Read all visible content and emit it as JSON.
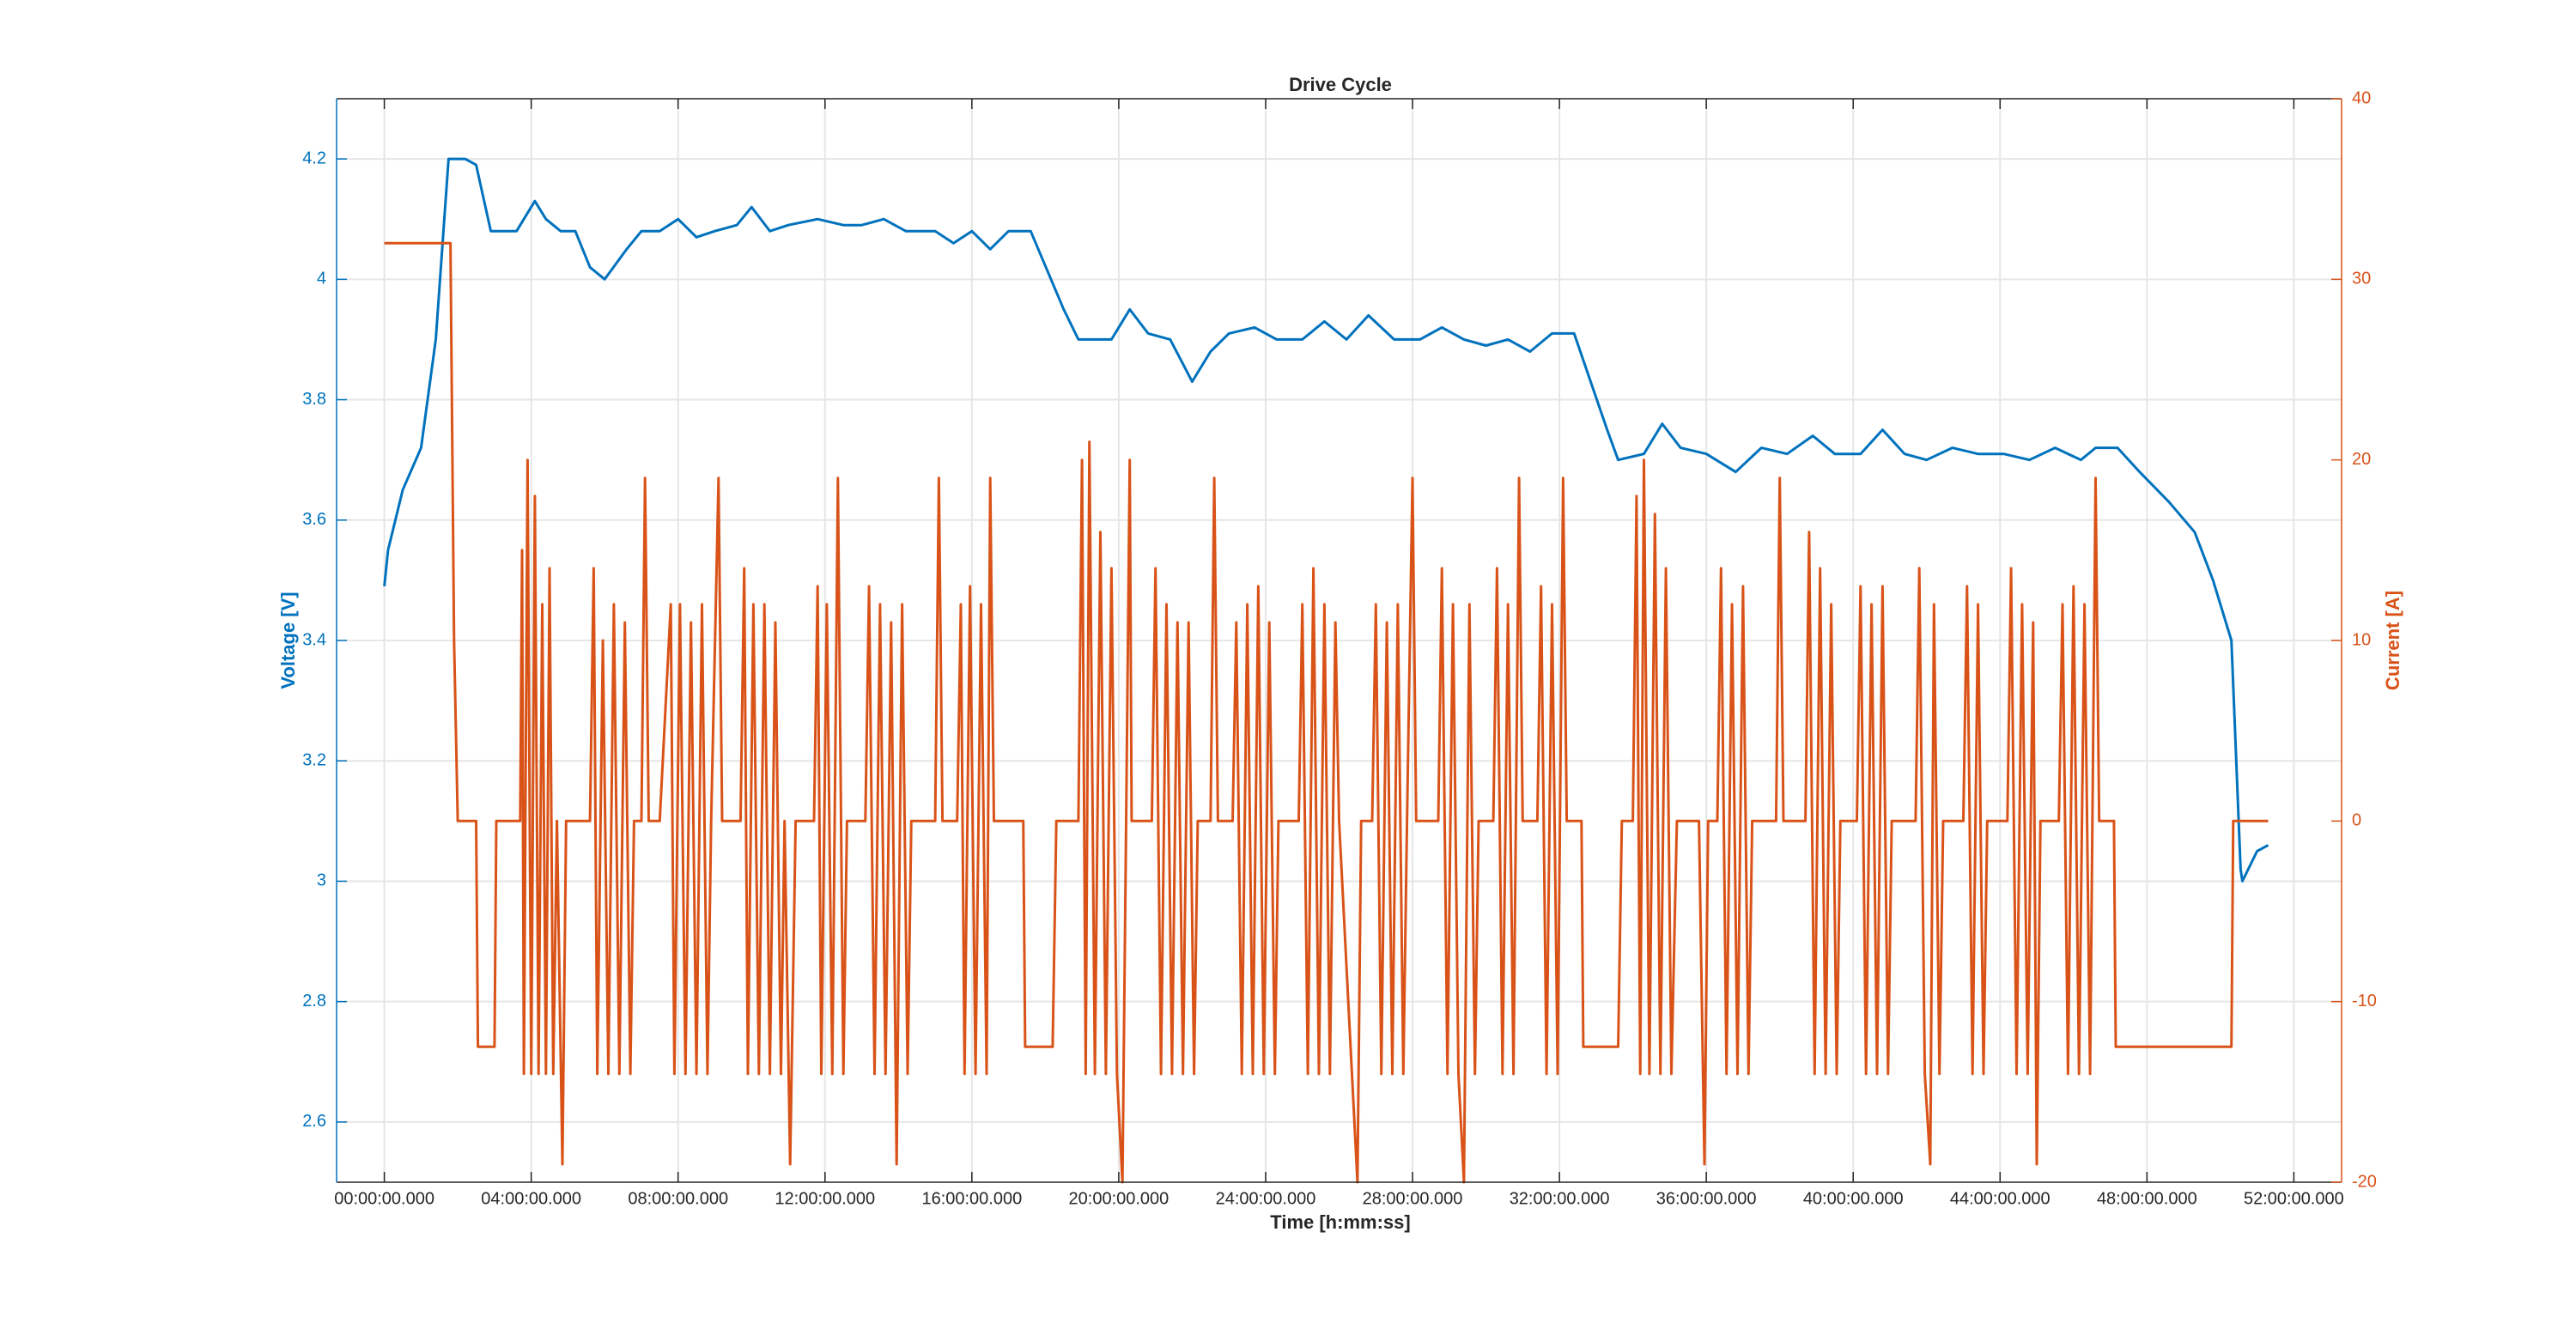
{
  "chart_data": {
    "type": "line",
    "title": "Drive Cycle",
    "xlabel": "Time [h:mm:ss]",
    "ylabel": "Voltage [V]",
    "y2label": "Current [A]",
    "xlim": [
      -1.3,
      53.3
    ],
    "ylim": [
      2.5,
      4.3
    ],
    "y2lim": [
      -20,
      40
    ],
    "grid": true,
    "xticks": [
      {
        "value": 0,
        "label": "00:00:00.000"
      },
      {
        "value": 4,
        "label": "04:00:00.000"
      },
      {
        "value": 8,
        "label": "08:00:00.000"
      },
      {
        "value": 12,
        "label": "12:00:00.000"
      },
      {
        "value": 16,
        "label": "16:00:00.000"
      },
      {
        "value": 20,
        "label": "20:00:00.000"
      },
      {
        "value": 24,
        "label": "24:00:00.000"
      },
      {
        "value": 28,
        "label": "28:00:00.000"
      },
      {
        "value": 32,
        "label": "32:00:00.000"
      },
      {
        "value": 36,
        "label": "36:00:00.000"
      },
      {
        "value": 40,
        "label": "40:00:00.000"
      },
      {
        "value": 44,
        "label": "44:00:00.000"
      },
      {
        "value": 48,
        "label": "48:00:00.000"
      },
      {
        "value": 52,
        "label": "52:00:00.000"
      }
    ],
    "yticks": [
      2.6,
      2.8,
      3,
      3.2,
      3.4,
      3.6,
      3.8,
      4,
      4.2
    ],
    "y2ticks": [
      -20,
      -10,
      0,
      10,
      20,
      30,
      40
    ],
    "series": [
      {
        "color": "#0072bd",
        "axis": "y",
        "x": [
          0,
          0.1,
          0.5,
          1.0,
          1.4,
          1.75,
          2.2,
          2.5,
          2.9,
          3.6,
          3.8,
          4.1,
          4.4,
          4.8,
          5.2,
          5.6,
          6.0,
          6.6,
          7.0,
          7.5,
          8.0,
          8.5,
          9.0,
          9.6,
          10.0,
          10.5,
          11.0,
          11.8,
          12.5,
          13.0,
          13.6,
          14.2,
          15.0,
          15.5,
          16.0,
          16.5,
          17.0,
          17.6,
          18.5,
          18.9,
          19.8,
          20.3,
          20.8,
          21.4,
          22.0,
          22.5,
          23.0,
          23.7,
          24.3,
          25.0,
          25.6,
          26.2,
          26.8,
          27.5,
          28.2,
          28.8,
          29.4,
          30.0,
          30.6,
          31.2,
          31.8,
          32.4,
          33.3,
          33.6,
          34.3,
          34.8,
          35.3,
          36.0,
          36.8,
          37.5,
          38.2,
          38.9,
          39.5,
          40.2,
          40.8,
          41.4,
          42.0,
          42.7,
          43.4,
          44.1,
          44.8,
          45.5,
          46.2,
          46.6,
          47.2,
          47.8,
          48.6,
          49.3,
          49.8,
          50.3,
          50.55,
          50.6,
          51.0,
          51.3
        ],
        "values": [
          3.49,
          3.55,
          3.65,
          3.72,
          3.9,
          4.2,
          4.2,
          4.19,
          4.08,
          4.08,
          4.1,
          4.13,
          4.1,
          4.08,
          4.08,
          4.02,
          4.0,
          4.05,
          4.08,
          4.08,
          4.1,
          4.07,
          4.08,
          4.09,
          4.12,
          4.08,
          4.09,
          4.1,
          4.09,
          4.09,
          4.1,
          4.08,
          4.08,
          4.06,
          4.08,
          4.05,
          4.08,
          4.08,
          3.95,
          3.9,
          3.9,
          3.95,
          3.91,
          3.9,
          3.83,
          3.88,
          3.91,
          3.92,
          3.9,
          3.9,
          3.93,
          3.9,
          3.94,
          3.9,
          3.9,
          3.92,
          3.9,
          3.89,
          3.9,
          3.88,
          3.91,
          3.91,
          3.75,
          3.7,
          3.71,
          3.76,
          3.72,
          3.71,
          3.68,
          3.72,
          3.71,
          3.74,
          3.71,
          3.71,
          3.75,
          3.71,
          3.7,
          3.72,
          3.71,
          3.71,
          3.7,
          3.72,
          3.7,
          3.72,
          3.72,
          3.68,
          3.63,
          3.58,
          3.5,
          3.4,
          3.02,
          3.0,
          3.05,
          3.06
        ]
      },
      {
        "color": "#d95319",
        "axis": "y2",
        "x": [
          0,
          1.8,
          1.9,
          2.0,
          2.5,
          2.55,
          3.0,
          3.05,
          3.7,
          3.75,
          3.8,
          3.9,
          4.0,
          4.1,
          4.2,
          4.3,
          4.4,
          4.5,
          4.6,
          4.7,
          4.85,
          4.95,
          5.6,
          5.7,
          5.8,
          5.95,
          6.1,
          6.25,
          6.4,
          6.55,
          6.7,
          6.8,
          7.0,
          7.1,
          7.2,
          7.5,
          7.8,
          7.9,
          8.05,
          8.2,
          8.35,
          8.5,
          8.65,
          8.8,
          8.9,
          9.1,
          9.2,
          9.7,
          9.8,
          9.9,
          10.05,
          10.2,
          10.35,
          10.5,
          10.65,
          10.8,
          10.9,
          11.05,
          11.2,
          11.7,
          11.8,
          11.9,
          12.05,
          12.2,
          12.35,
          12.5,
          12.6,
          13.1,
          13.2,
          13.35,
          13.5,
          13.65,
          13.8,
          13.95,
          14.1,
          14.25,
          14.35,
          15.0,
          15.1,
          15.2,
          15.6,
          15.7,
          15.8,
          15.95,
          16.1,
          16.25,
          16.4,
          16.5,
          16.6,
          17.4,
          17.45,
          18.2,
          18.3,
          18.9,
          19.0,
          19.1,
          19.2,
          19.35,
          19.5,
          19.65,
          19.8,
          19.95,
          20.1,
          20.2,
          20.3,
          20.35,
          20.9,
          21.0,
          21.15,
          21.3,
          21.45,
          21.6,
          21.75,
          21.9,
          22.05,
          22.15,
          22.5,
          22.6,
          22.7,
          23.1,
          23.2,
          23.35,
          23.5,
          23.65,
          23.8,
          23.95,
          24.1,
          24.25,
          24.35,
          24.9,
          25.0,
          25.15,
          25.3,
          25.45,
          25.6,
          25.75,
          25.9,
          26.0,
          26.5,
          26.6,
          26.9,
          27.0,
          27.15,
          27.3,
          27.45,
          27.6,
          27.75,
          27.85,
          28.0,
          28.1,
          28.7,
          28.8,
          28.95,
          29.1,
          29.25,
          29.4,
          29.55,
          29.7,
          29.8,
          30.2,
          30.3,
          30.45,
          30.6,
          30.75,
          30.9,
          31.0,
          31.4,
          31.5,
          31.65,
          31.8,
          31.95,
          32.1,
          32.2,
          32.6,
          32.65,
          33.6,
          33.7,
          34.0,
          34.1,
          34.2,
          34.3,
          34.45,
          34.6,
          34.75,
          34.9,
          35.05,
          35.2,
          35.8,
          35.95,
          36.05,
          36.3,
          36.4,
          36.55,
          36.7,
          36.85,
          37.0,
          37.15,
          37.25,
          37.9,
          38.0,
          38.1,
          38.7,
          38.8,
          38.95,
          39.1,
          39.25,
          39.4,
          39.55,
          39.65,
          40.1,
          40.2,
          40.35,
          40.5,
          40.65,
          40.8,
          40.95,
          41.05,
          41.7,
          41.8,
          41.95,
          42.1,
          42.2,
          42.35,
          42.45,
          43.0,
          43.1,
          43.25,
          43.4,
          43.55,
          43.65,
          44.2,
          44.3,
          44.45,
          44.6,
          44.75,
          44.9,
          45.0,
          45.1,
          45.6,
          45.7,
          45.85,
          46.0,
          46.15,
          46.3,
          46.45,
          46.6,
          46.7,
          47.1,
          47.15,
          50.3,
          50.35,
          51.3
        ],
        "values": [
          32,
          32,
          10,
          0,
          0,
          -12.5,
          -12.5,
          0,
          0,
          15,
          -14,
          20,
          -14,
          18,
          -14,
          12,
          -14,
          14,
          -14,
          0,
          -19,
          0,
          0,
          14,
          -14,
          10,
          -14,
          12,
          -14,
          11,
          -14,
          0,
          0,
          19,
          0,
          0,
          12,
          -14,
          12,
          -14,
          11,
          -14,
          12,
          -14,
          0,
          19,
          0,
          0,
          14,
          -14,
          12,
          -14,
          12,
          -14,
          11,
          -14,
          0,
          -19,
          0,
          0,
          13,
          -14,
          12,
          -14,
          19,
          -14,
          0,
          0,
          13,
          -14,
          12,
          -14,
          11,
          -19,
          12,
          -14,
          0,
          0,
          19,
          0,
          0,
          12,
          -14,
          13,
          -14,
          12,
          -14,
          19,
          0,
          0,
          -12.5,
          -12.5,
          0,
          0,
          20,
          -14,
          21,
          -14,
          16,
          -14,
          14,
          -14,
          -20,
          0,
          20,
          0,
          0,
          14,
          -14,
          12,
          -14,
          11,
          -14,
          11,
          -14,
          0,
          0,
          19,
          0,
          0,
          11,
          -14,
          12,
          -14,
          13,
          -14,
          11,
          -14,
          0,
          0,
          12,
          -14,
          14,
          -14,
          12,
          -14,
          11,
          0,
          -20,
          0,
          0,
          12,
          -14,
          11,
          -14,
          12,
          -14,
          0,
          19,
          0,
          0,
          14,
          -14,
          12,
          -14,
          -20,
          12,
          -14,
          0,
          0,
          14,
          -14,
          12,
          -14,
          19,
          0,
          0,
          13,
          -14,
          12,
          -14,
          19,
          0,
          0,
          -12.5,
          -12.5,
          0,
          0,
          18,
          -14,
          20,
          -14,
          17,
          -14,
          14,
          -14,
          0,
          0,
          -19,
          0,
          0,
          14,
          -14,
          12,
          -14,
          13,
          -14,
          0,
          0,
          19,
          0,
          0,
          16,
          -14,
          14,
          -14,
          12,
          -14,
          0,
          0,
          13,
          -14,
          12,
          -14,
          13,
          -14,
          0,
          0,
          14,
          -14,
          -19,
          12,
          -14,
          0,
          0,
          13,
          -14,
          12,
          -14,
          0,
          0,
          14,
          -14,
          12,
          -14,
          11,
          -19,
          0,
          0,
          12,
          -14,
          13,
          -14,
          12,
          -14,
          19,
          0,
          0,
          -12.5,
          -12.5,
          0,
          0
        ]
      }
    ]
  }
}
